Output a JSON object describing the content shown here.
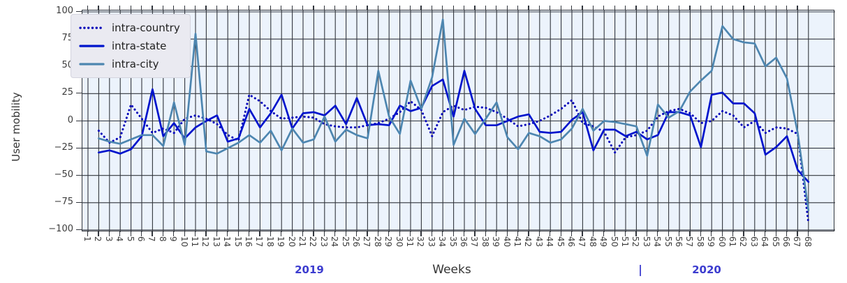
{
  "chart_data": {
    "type": "line",
    "title": "",
    "xlabel": "Weeks",
    "ylabel": "User mobility",
    "grid": true,
    "legend_position": "upper-left",
    "plot_bg_color": "#ecf3fc",
    "grid_color": "#32363d",
    "ylim": [
      -102,
      101.3
    ],
    "y_ticks": [
      100,
      75,
      50,
      25,
      0,
      -25,
      -50,
      -75,
      -100
    ],
    "y_tick_labels": [
      "100",
      "75",
      "50",
      "25",
      "0",
      "−25",
      "−50",
      "−75",
      "−100"
    ],
    "x_ticks": [
      1,
      2,
      3,
      4,
      5,
      6,
      7,
      8,
      9,
      10,
      11,
      12,
      13,
      14,
      15,
      16,
      17,
      18,
      19,
      20,
      21,
      22,
      23,
      24,
      25,
      26,
      27,
      28,
      29,
      30,
      31,
      32,
      33,
      34,
      35,
      36,
      37,
      38,
      39,
      40,
      41,
      42,
      43,
      44,
      45,
      46,
      47,
      48,
      49,
      50,
      51,
      52,
      53,
      54,
      55,
      56,
      57,
      58,
      59,
      60,
      61,
      62,
      63,
      64,
      65,
      66,
      67,
      68
    ],
    "start_week": 2,
    "series": [
      {
        "name": "intra-country",
        "style": "dotted",
        "color": "#0000b8",
        "values": [
          -9,
          -20,
          -15,
          15,
          2,
          -11,
          -7,
          -11,
          2,
          5,
          2,
          -3,
          -13,
          -18,
          24,
          18,
          9,
          2,
          3,
          4,
          3,
          -3,
          -5,
          -6,
          -6,
          -4,
          -2,
          2,
          8,
          18,
          10,
          -14,
          8,
          14,
          10,
          13,
          12,
          8,
          2,
          -5,
          -3,
          0,
          5,
          11,
          19,
          -2,
          -5,
          -10,
          -29,
          -15,
          -13,
          -9,
          4,
          9,
          11,
          7,
          -2,
          0,
          9,
          5,
          -6,
          0,
          -11,
          -6,
          -7,
          -12,
          -94
        ]
      },
      {
        "name": "intra-state",
        "style": "solid",
        "color": "#0014cc",
        "values": [
          -29,
          -27,
          -30,
          -26,
          -14,
          29,
          -14,
          -2,
          -16,
          -6,
          0,
          5,
          -19,
          -16,
          11,
          -6,
          7,
          24,
          -7,
          7,
          8,
          5,
          14,
          -3,
          21,
          -4,
          -3,
          -4,
          14,
          9,
          12,
          32,
          38,
          4,
          46,
          11,
          -4,
          -4,
          0,
          4,
          6,
          -10,
          -11,
          -10,
          1,
          8,
          -27,
          -8,
          -8,
          -14,
          -10,
          -17,
          -13,
          8,
          8,
          5,
          -24,
          24,
          26,
          16,
          16,
          7,
          -31,
          -24,
          -14,
          -45,
          -56
        ]
      },
      {
        "name": "intra-city",
        "style": "solid",
        "color": "#4d86b0",
        "values": [
          -16,
          -19,
          -21,
          -17,
          -13,
          -13,
          -23,
          17,
          -22,
          80,
          -28,
          -30,
          -25,
          -20,
          -13,
          -20,
          -9,
          -27,
          -7,
          -20,
          -17,
          4,
          -19,
          -8,
          -13,
          -16,
          46,
          4,
          -12,
          37,
          11,
          40,
          93,
          -22,
          2,
          -12,
          2,
          17,
          -15,
          -26,
          -11,
          -14,
          -20,
          -17,
          -7,
          11,
          -9,
          0,
          -1,
          -3,
          -5,
          -32,
          15,
          3,
          9,
          27,
          37,
          46,
          87,
          75,
          72,
          71,
          50,
          58,
          39,
          -11,
          -82
        ]
      }
    ],
    "annotations": {
      "year_left": "2019",
      "separator": "|",
      "year_right": "2020"
    }
  }
}
